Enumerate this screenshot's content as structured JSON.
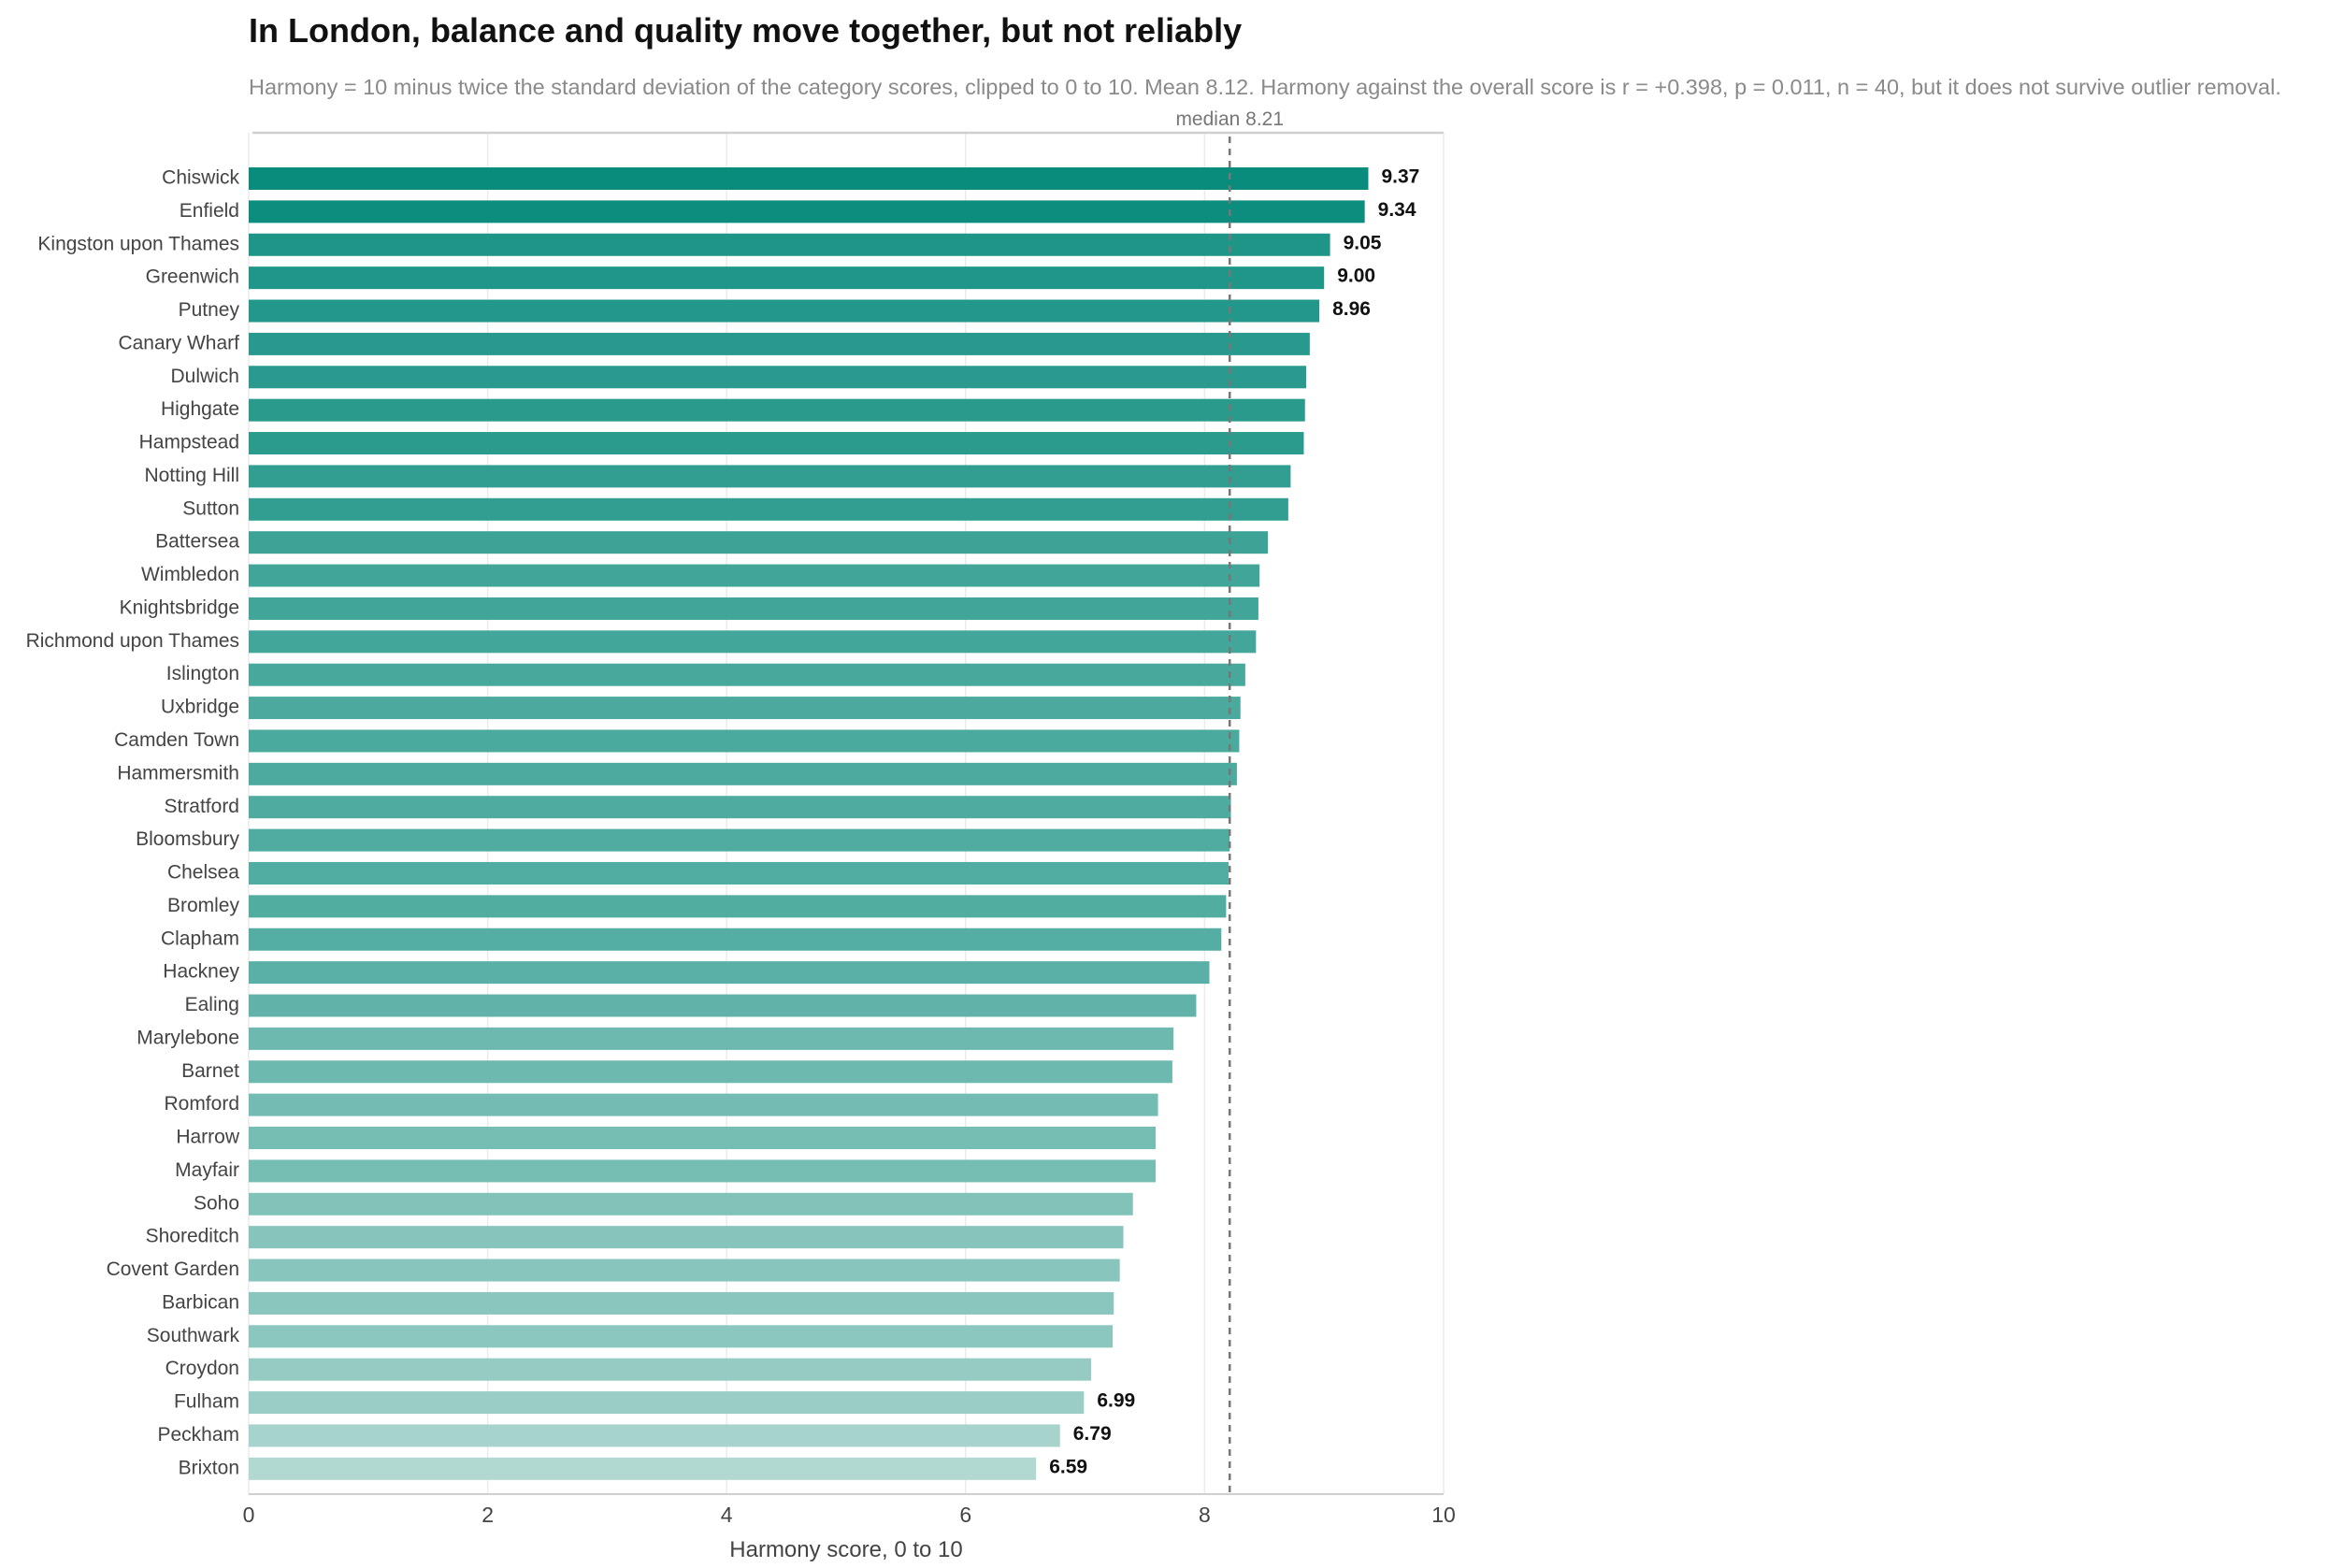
{
  "chart_data": {
    "type": "bar",
    "orientation": "horizontal",
    "title": "In London, balance and quality move together, but not reliably",
    "subtitle": "Harmony = 10 minus twice the standard deviation of the category scores, clipped to 0 to 10. Mean 8.12. Harmony against the overall score is r = +0.398, p = 0.011, n = 40, but it does not survive outlier removal.",
    "xlabel": "Harmony score, 0 to 10",
    "ylabel": "",
    "xlim": [
      0,
      10
    ],
    "xticks": [
      "0",
      "2",
      "4",
      "6",
      "8",
      "10"
    ],
    "grid": "vertical",
    "median": {
      "value": 8.21,
      "label": "median 8.21"
    },
    "colors": {
      "high": "#0a8c7d",
      "low": "#b2d8d2",
      "median_line": "#777777"
    },
    "categories": [
      "Chiswick",
      "Enfield",
      "Kingston upon Thames",
      "Greenwich",
      "Putney",
      "Canary Wharf",
      "Dulwich",
      "Highgate",
      "Hampstead",
      "Notting Hill",
      "Sutton",
      "Battersea",
      "Wimbledon",
      "Knightsbridge",
      "Richmond upon Thames",
      "Islington",
      "Uxbridge",
      "Camden Town",
      "Hammersmith",
      "Stratford",
      "Bloomsbury",
      "Chelsea",
      "Bromley",
      "Clapham",
      "Hackney",
      "Ealing",
      "Marylebone",
      "Barnet",
      "Romford",
      "Harrow",
      "Mayfair",
      "Soho",
      "Shoreditch",
      "Covent Garden",
      "Barbican",
      "Southwark",
      "Croydon",
      "Fulham",
      "Peckham",
      "Brixton"
    ],
    "values": [
      9.37,
      9.34,
      9.05,
      9.0,
      8.96,
      8.88,
      8.85,
      8.84,
      8.83,
      8.72,
      8.7,
      8.53,
      8.46,
      8.45,
      8.43,
      8.34,
      8.3,
      8.29,
      8.27,
      8.22,
      8.21,
      8.2,
      8.18,
      8.14,
      8.04,
      7.93,
      7.74,
      7.73,
      7.61,
      7.59,
      7.59,
      7.4,
      7.32,
      7.29,
      7.24,
      7.23,
      7.05,
      6.99,
      6.79,
      6.59
    ],
    "labeled_values": {
      "Chiswick": "9.37",
      "Enfield": "9.34",
      "Kingston upon Thames": "9.05",
      "Greenwich": "9.00",
      "Putney": "8.96",
      "Fulham": "6.99",
      "Peckham": "6.79",
      "Brixton": "6.59"
    }
  }
}
